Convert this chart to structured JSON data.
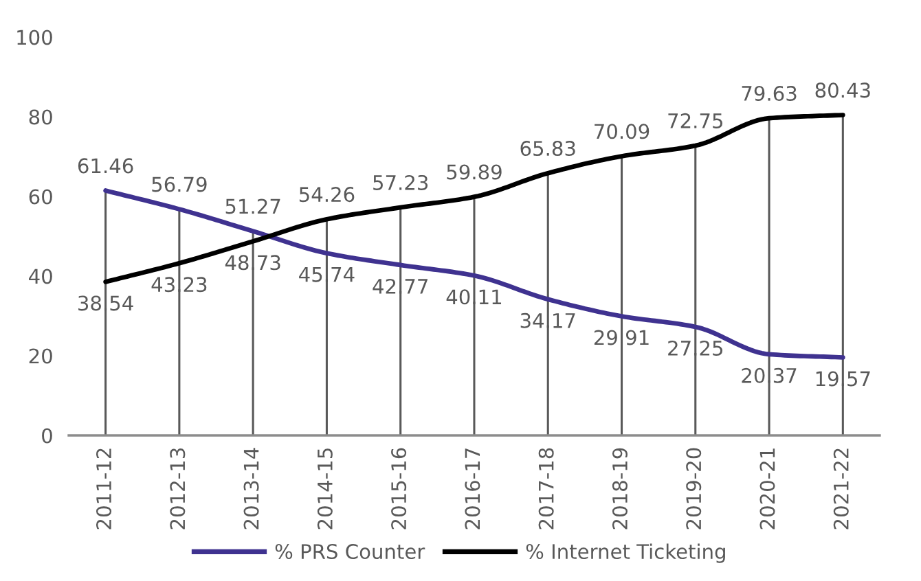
{
  "chart_data": {
    "type": "line",
    "categories": [
      "2011-12",
      "2012-13",
      "2013-14",
      "2014-15",
      "2015-16",
      "2016-17",
      "2017-18",
      "2018-19",
      "2019-20",
      "2020-21",
      "2021-22"
    ],
    "series": [
      {
        "name": "% PRS Counter",
        "color": "#3f3290",
        "values": [
          61.46,
          56.79,
          51.27,
          45.74,
          42.77,
          40.11,
          34.17,
          29.91,
          27.25,
          20.37,
          19.57
        ]
      },
      {
        "name": "% Internet Ticketing",
        "color": "#000000",
        "values": [
          38.54,
          43.23,
          48.73,
          54.26,
          57.23,
          59.89,
          65.83,
          70.09,
          72.75,
          79.63,
          80.43
        ]
      }
    ],
    "ylim": [
      0,
      100
    ],
    "yticks": [
      0,
      20,
      40,
      60,
      80,
      100
    ],
    "data_labels": true,
    "legend": "bottom",
    "marker": "none",
    "line_style": "solid",
    "ref_lines": [
      {
        "axis": "x",
        "value": "2011-12",
        "color": "#595959"
      },
      {
        "axis": "x",
        "value": "2012-13",
        "color": "#595959"
      },
      {
        "axis": "x",
        "value": "2013-14",
        "color": "#595959"
      },
      {
        "axis": "x",
        "value": "2014-15",
        "color": "#595959"
      },
      {
        "axis": "x",
        "value": "2015-16",
        "color": "#595959"
      },
      {
        "axis": "x",
        "value": "2016-17",
        "color": "#595959"
      },
      {
        "axis": "x",
        "value": "2017-18",
        "color": "#595959"
      },
      {
        "axis": "x",
        "value": "2018-19",
        "color": "#595959"
      },
      {
        "axis": "x",
        "value": "2019-20",
        "color": "#595959"
      },
      {
        "axis": "x",
        "value": "2020-21",
        "color": "#595959"
      },
      {
        "axis": "x",
        "value": "2021-22",
        "color": "#595959"
      }
    ]
  }
}
